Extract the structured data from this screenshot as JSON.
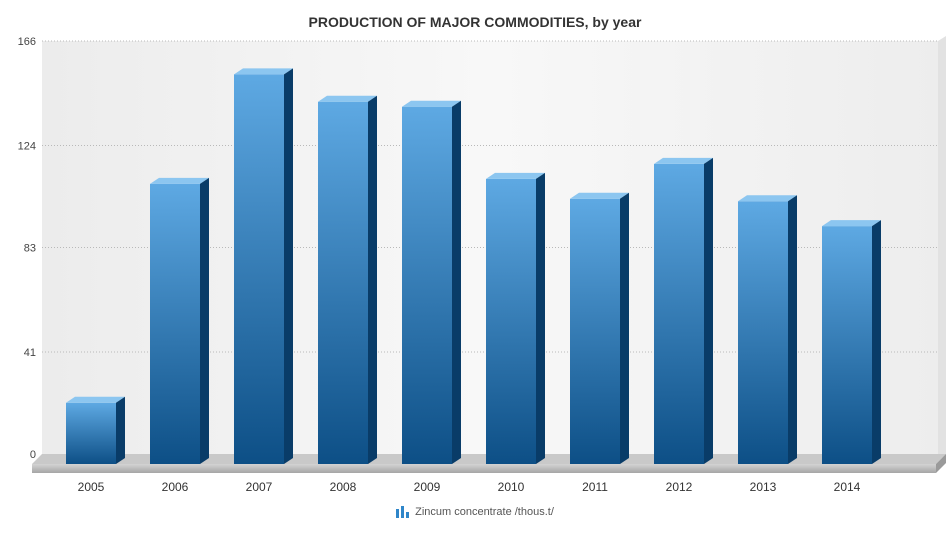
{
  "chart_data": {
    "type": "bar",
    "title": "PRODUCTION OF MAJOR COMMODITIES, by year",
    "categories": [
      "2005",
      "2006",
      "2007",
      "2008",
      "2009",
      "2010",
      "2011",
      "2012",
      "2013",
      "2014"
    ],
    "series": [
      {
        "name": "Zincum concentrate /thous.t/",
        "values": [
          23,
          111,
          155,
          144,
          142,
          113,
          105,
          119,
          104,
          94
        ]
      }
    ],
    "y_ticks": [
      "0",
      "41",
      "83",
      "124",
      "166"
    ],
    "ylim": [
      0,
      166
    ],
    "grid": true,
    "legend_position": "bottom",
    "colors": {
      "bar_light": "#5ea9e3",
      "bar_dark": "#0d4f86",
      "bar_top": "#8cc6f0",
      "bar_side": "#093c68",
      "grid": "#b9b9b9",
      "floor": "#b8b8b8"
    }
  }
}
